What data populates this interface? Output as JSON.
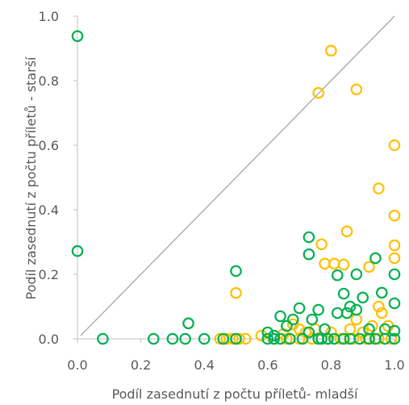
{
  "chart_data": {
    "type": "scatter",
    "xlabel": "Podíl zasednutí z počtu příletů- mladší",
    "ylabel": "Podíl zasednutí z počtu příletů - starší",
    "xlim": [
      0,
      1
    ],
    "ylim": [
      0,
      1
    ],
    "x_ticks": [
      "0.0",
      "0.2",
      "0.4",
      "0.6",
      "0.8",
      "1.0"
    ],
    "y_ticks": [
      "0.0",
      "0.2",
      "0.4",
      "0.6",
      "0.8",
      "1.0"
    ],
    "grid": false,
    "legend": "none",
    "reference_line": {
      "from": [
        0.01,
        0.01
      ],
      "to": [
        1.0,
        1.0
      ],
      "color": "#a6a6a6"
    },
    "series": [
      {
        "color": "#ffc000",
        "marker": "open-circle",
        "points": [
          [
            0.8,
            0.893
          ],
          [
            0.76,
            0.762
          ],
          [
            0.88,
            0.773
          ],
          [
            1.0,
            0.6
          ],
          [
            0.95,
            0.466
          ],
          [
            1.0,
            0.382
          ],
          [
            0.85,
            0.333
          ],
          [
            1.0,
            0.29
          ],
          [
            0.77,
            0.293
          ],
          [
            1.0,
            0.25
          ],
          [
            0.78,
            0.233
          ],
          [
            0.81,
            0.233
          ],
          [
            0.84,
            0.23
          ],
          [
            0.92,
            0.223
          ],
          [
            0.5,
            0.142
          ],
          [
            0.95,
            0.1
          ],
          [
            0.85,
            0.08
          ],
          [
            0.88,
            0.06
          ],
          [
            0.96,
            0.08
          ],
          [
            0.98,
            0.04
          ],
          [
            0.75,
            0.03
          ],
          [
            0.8,
            0.02
          ],
          [
            0.68,
            0.045
          ],
          [
            0.7,
            0.03
          ],
          [
            0.72,
            0.02
          ],
          [
            0.65,
            0.015
          ],
          [
            0.86,
            0.03
          ],
          [
            0.9,
            0.02
          ],
          [
            0.93,
            0.04
          ],
          [
            0.58,
            0.01
          ],
          [
            0.45,
            0.0
          ],
          [
            0.47,
            0.0
          ],
          [
            0.49,
            0.0
          ],
          [
            0.51,
            0.0
          ],
          [
            0.53,
            0.0
          ],
          [
            0.62,
            0.0
          ],
          [
            0.66,
            0.0
          ],
          [
            0.7,
            0.0
          ],
          [
            0.74,
            0.0
          ],
          [
            0.79,
            0.0
          ],
          [
            0.83,
            0.0
          ],
          [
            0.87,
            0.0
          ],
          [
            0.91,
            0.0
          ],
          [
            0.95,
            0.0
          ],
          [
            0.99,
            0.0
          ]
        ]
      },
      {
        "color": "#00b050",
        "marker": "open-circle",
        "points": [
          [
            0.0,
            0.938
          ],
          [
            0.0,
            0.272
          ],
          [
            0.08,
            0.0
          ],
          [
            0.24,
            0.0
          ],
          [
            0.3,
            0.0
          ],
          [
            0.34,
            0.0
          ],
          [
            0.4,
            0.0
          ],
          [
            0.46,
            0.0
          ],
          [
            0.5,
            0.0
          ],
          [
            0.35,
            0.048
          ],
          [
            0.5,
            0.21
          ],
          [
            0.73,
            0.315
          ],
          [
            0.73,
            0.262
          ],
          [
            0.94,
            0.25
          ],
          [
            0.82,
            0.197
          ],
          [
            0.88,
            0.2
          ],
          [
            1.0,
            0.2
          ],
          [
            0.96,
            0.143
          ],
          [
            0.84,
            0.14
          ],
          [
            0.9,
            0.128
          ],
          [
            1.0,
            0.11
          ],
          [
            0.86,
            0.1
          ],
          [
            0.76,
            0.09
          ],
          [
            0.64,
            0.07
          ],
          [
            0.68,
            0.06
          ],
          [
            0.73,
            0.02
          ],
          [
            0.6,
            0.02
          ],
          [
            0.85,
            0.08
          ],
          [
            0.88,
            0.09
          ],
          [
            0.78,
            0.03
          ],
          [
            0.82,
            0.08
          ],
          [
            0.7,
            0.095
          ],
          [
            0.62,
            0.01
          ],
          [
            0.66,
            0.04
          ],
          [
            0.74,
            0.06
          ],
          [
            0.92,
            0.03
          ],
          [
            0.97,
            0.03
          ],
          [
            1.0,
            0.025
          ],
          [
            0.6,
            0.0
          ],
          [
            0.62,
            0.0
          ],
          [
            0.64,
            0.0
          ],
          [
            0.67,
            0.0
          ],
          [
            0.71,
            0.0
          ],
          [
            0.76,
            0.0
          ],
          [
            0.77,
            0.0
          ],
          [
            0.79,
            0.0
          ],
          [
            0.81,
            0.0
          ],
          [
            0.84,
            0.0
          ],
          [
            0.86,
            0.0
          ],
          [
            0.89,
            0.0
          ],
          [
            0.92,
            0.0
          ],
          [
            0.94,
            0.0
          ],
          [
            0.97,
            0.0
          ],
          [
            1.0,
            0.0
          ]
        ]
      }
    ]
  }
}
